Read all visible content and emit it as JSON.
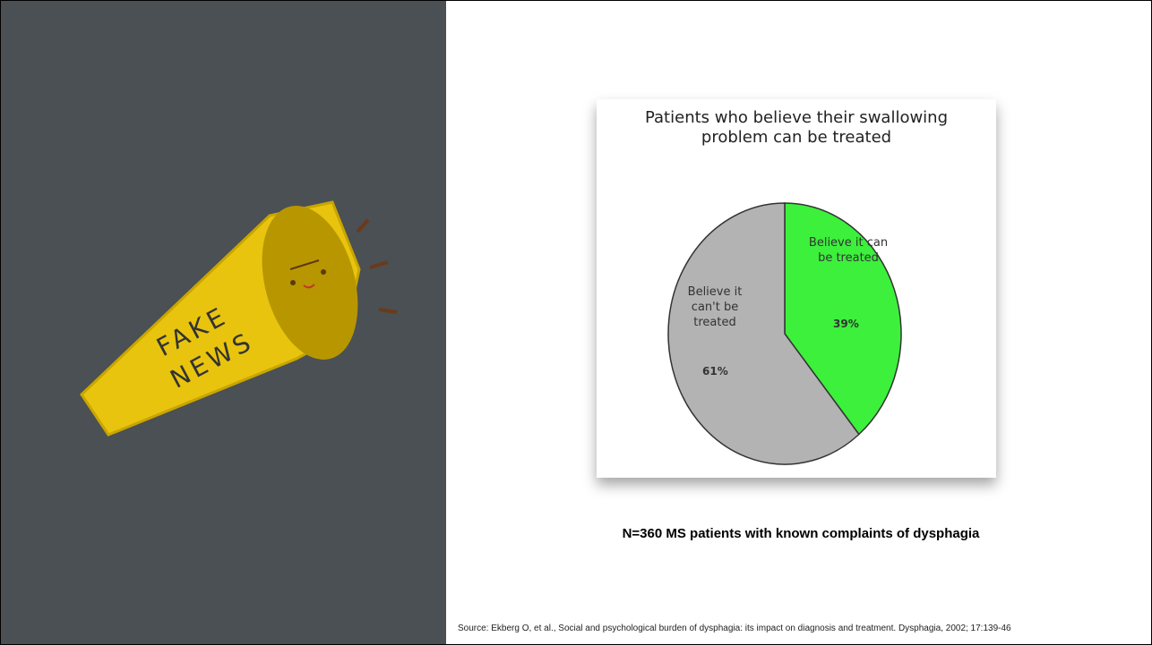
{
  "chart_data": {
    "type": "pie",
    "title": "Patients who believe their swallowing problem can be treated",
    "categories": [
      "Believe it can be treated",
      "Believe it can't be treated"
    ],
    "values": [
      39,
      61
    ],
    "value_labels": [
      "39%",
      "61%"
    ],
    "colors": [
      "#3cf03c",
      "#b3b3b3"
    ]
  },
  "caption": "N=360 MS patients with known complaints of dysphagia",
  "source": "Source: Ekberg O, et al., Social and psychological burden of dysphagia: its impact on diagnosis and treatment. Dysphagia, 2002; 17:139-46",
  "illustration": {
    "lines": [
      "FAKE",
      "NEWS"
    ]
  }
}
